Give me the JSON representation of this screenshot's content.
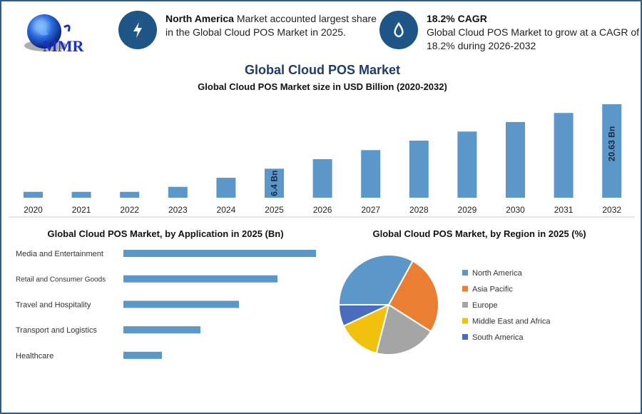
{
  "header": {
    "logo_text": "MMR",
    "info1": {
      "icon": "lightning-icon",
      "bold": "North America",
      "text": " Market accounted largest share in the Global Cloud POS Market in 2025."
    },
    "info2": {
      "icon": "growth-drop-icon",
      "bold": "18.2% CAGR",
      "text": "Global Cloud POS Market to grow at a CAGR of 18.2% during 2026-2032"
    }
  },
  "title": "Global Cloud POS Market",
  "colors": {
    "bar": "#5b97c9",
    "frame": "#2e5d8c",
    "title": "#1f3a6b",
    "icon_bg": "#1f5587"
  },
  "chart_data": [
    {
      "type": "bar",
      "title": "Global Cloud POS Market size in USD Billion (2020-2032)",
      "categories": [
        "2020",
        "2021",
        "2022",
        "2023",
        "2024",
        "2025",
        "2026",
        "2027",
        "2028",
        "2029",
        "2030",
        "2031",
        "2032"
      ],
      "values": [
        1.3,
        1.3,
        1.3,
        2.4,
        4.4,
        6.4,
        8.5,
        10.5,
        12.6,
        14.6,
        16.7,
        18.7,
        20.63
      ],
      "data_labels": {
        "2025": "6.4 Bn",
        "2032": "20.63 Bn"
      },
      "grid": false
    },
    {
      "type": "bar",
      "orientation": "horizontal",
      "title": "Global Cloud POS Market, by Application in 2025 (Bn)",
      "categories": [
        "Media and Entertainment",
        "Retail and Consumer Goods",
        "Travel and Hospitality",
        "Transport and Logistics",
        "Healthcare"
      ],
      "values": [
        5,
        4,
        3,
        2,
        1
      ],
      "grid": false
    },
    {
      "type": "pie",
      "title": "Global Cloud POS Market, by Region in 2025 (%)",
      "legend_position": "right",
      "slices": [
        {
          "label": "North America",
          "value": 33,
          "color": "#5b97c9"
        },
        {
          "label": "Asia Pacific",
          "value": 26,
          "color": "#ea7e33"
        },
        {
          "label": "Europe",
          "value": 20,
          "color": "#a5a5a5"
        },
        {
          "label": "Middle East and Africa",
          "value": 14,
          "color": "#f2c10f"
        },
        {
          "label": "South America",
          "value": 7,
          "color": "#4a6cbc"
        }
      ]
    }
  ]
}
